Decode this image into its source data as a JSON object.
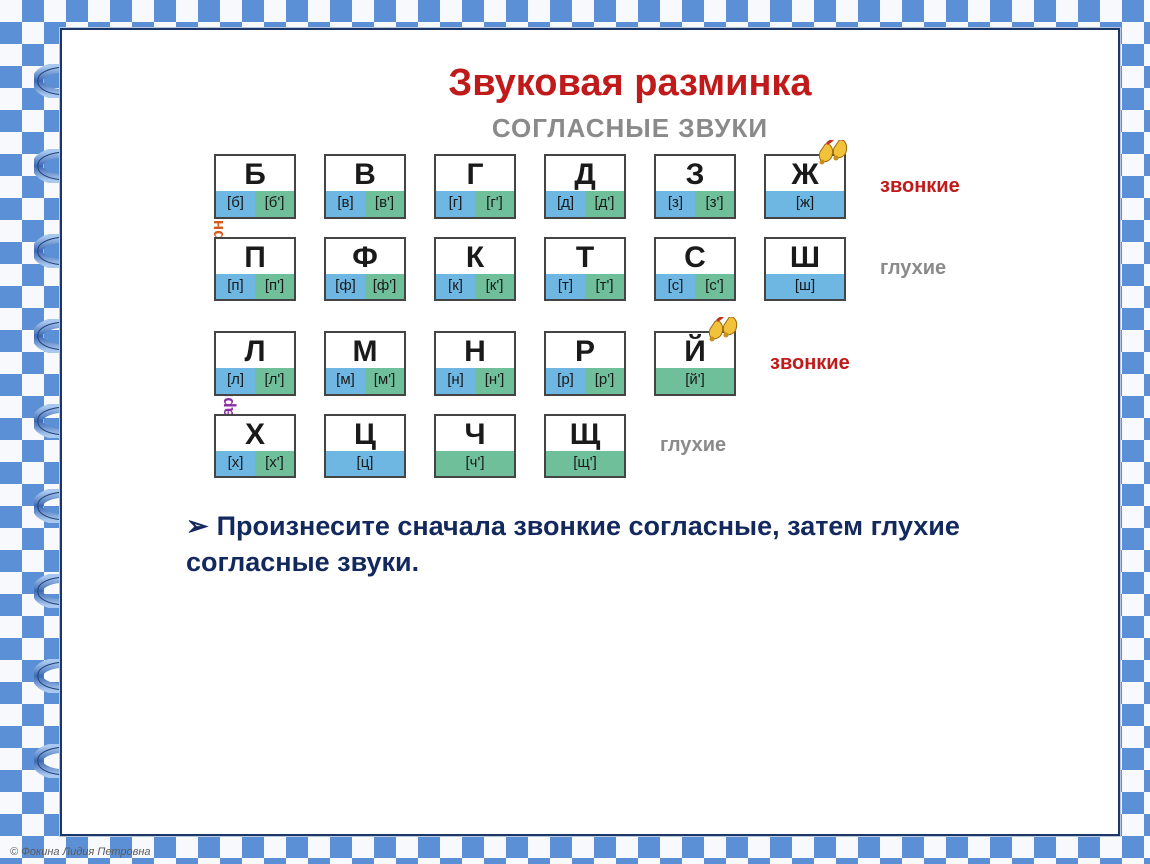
{
  "colors": {
    "title": "#c01a1a",
    "subtitle": "#8a8a8a",
    "paired_side": "#d65a1c",
    "unpaired_side": "#8a2fa3",
    "voiced_label": "#c01a1a",
    "voiceless_label": "#8a8a8a",
    "green": "#6fbf9b",
    "blue": "#6fb7e3",
    "instruction": "#13295d",
    "ring_dark": "#3b68b3",
    "ring_light": "#a9c8ef"
  },
  "title": "Звуковая   разминка",
  "subtitle": "СОГЛАСНЫЕ ЗВУКИ",
  "labels": {
    "paired": "парные",
    "unpaired": "непарные",
    "voiced": "звонкие",
    "voiceless": "глухие"
  },
  "rows": {
    "paired_voiced": [
      {
        "letter": "Б",
        "l": "[б]",
        "lcol": "blue",
        "r": "[б']",
        "rcol": "green"
      },
      {
        "letter": "В",
        "l": "[в]",
        "lcol": "blue",
        "r": "[в']",
        "rcol": "green"
      },
      {
        "letter": "Г",
        "l": "[г]",
        "lcol": "blue",
        "r": "[г']",
        "rcol": "green"
      },
      {
        "letter": "Д",
        "l": "[д]",
        "lcol": "blue",
        "r": "[д']",
        "rcol": "green"
      },
      {
        "letter": "З",
        "l": "[з]",
        "lcol": "blue",
        "r": "[з']",
        "rcol": "green"
      },
      {
        "letter": "Ж",
        "l": "[ж]",
        "lcol": "blue",
        "r": "",
        "rcol": "blue",
        "bell": true
      }
    ],
    "paired_voiceless": [
      {
        "letter": "П",
        "l": "[п]",
        "lcol": "blue",
        "r": "[п']",
        "rcol": "green"
      },
      {
        "letter": "Ф",
        "l": "[ф]",
        "lcol": "blue",
        "r": "[ф']",
        "rcol": "green"
      },
      {
        "letter": "К",
        "l": "[к]",
        "lcol": "blue",
        "r": "[к']",
        "rcol": "green"
      },
      {
        "letter": "Т",
        "l": "[т]",
        "lcol": "blue",
        "r": "[т']",
        "rcol": "green"
      },
      {
        "letter": "С",
        "l": "[с]",
        "lcol": "blue",
        "r": "[с']",
        "rcol": "green"
      },
      {
        "letter": "Ш",
        "l": "[ш]",
        "lcol": "blue",
        "r": "",
        "rcol": "blue"
      }
    ],
    "unpaired_voiced": [
      {
        "letter": "Л",
        "l": "[л]",
        "lcol": "blue",
        "r": "[л']",
        "rcol": "green"
      },
      {
        "letter": "М",
        "l": "[м]",
        "lcol": "blue",
        "r": "[м']",
        "rcol": "green"
      },
      {
        "letter": "Н",
        "l": "[н]",
        "lcol": "blue",
        "r": "[н']",
        "rcol": "green"
      },
      {
        "letter": "Р",
        "l": "[р]",
        "lcol": "blue",
        "r": "[р']",
        "rcol": "green"
      },
      {
        "letter": "Й",
        "l": "[й']",
        "lcol": "green",
        "r": "",
        "rcol": "green",
        "bell": true
      }
    ],
    "unpaired_voiceless": [
      {
        "letter": "Х",
        "l": "[х]",
        "lcol": "blue",
        "r": "[х']",
        "rcol": "green"
      },
      {
        "letter": "Ц",
        "l": "[ц]",
        "lcol": "blue",
        "r": "",
        "rcol": "blue"
      },
      {
        "letter": "Ч",
        "l": "[ч']",
        "lcol": "green",
        "r": "",
        "rcol": "green"
      },
      {
        "letter": "Щ",
        "l": "[щ']",
        "lcol": "green",
        "r": "",
        "rcol": "green"
      }
    ]
  },
  "instruction": "Произнесите  сначала звонкие согласные, затем  глухие согласные  звуки.",
  "copyright": "© Фокина Лидия Петровна"
}
